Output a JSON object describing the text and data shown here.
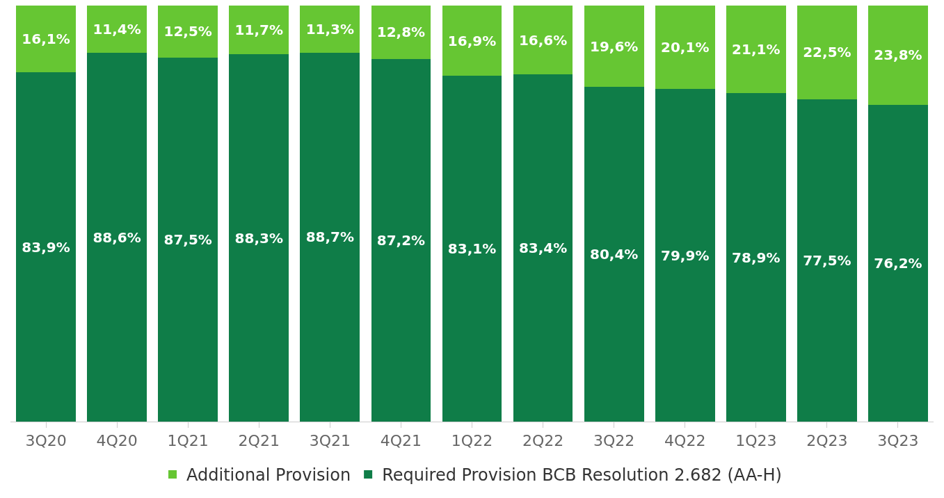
{
  "chart_data": {
    "type": "bar",
    "stacked": true,
    "categories": [
      "3Q20",
      "4Q20",
      "1Q21",
      "2Q21",
      "3Q21",
      "4Q21",
      "1Q22",
      "2Q22",
      "3Q22",
      "4Q22",
      "1Q23",
      "2Q23",
      "3Q23"
    ],
    "series": [
      {
        "name": "Required Provision BCB Resolution 2.682 (AA-H)",
        "color": "#0f7d48",
        "values": [
          83.9,
          88.6,
          87.5,
          88.3,
          88.7,
          87.2,
          83.1,
          83.4,
          80.4,
          79.9,
          78.9,
          77.5,
          76.2
        ],
        "value_labels": [
          "83,9%",
          "88,6%",
          "87,5%",
          "88,3%",
          "88,7%",
          "87,2%",
          "83,1%",
          "83,4%",
          "80,4%",
          "79,9%",
          "78,9%",
          "77,5%",
          "76,2%"
        ]
      },
      {
        "name": "Additional Provision",
        "color": "#66c633",
        "values": [
          16.1,
          11.4,
          12.5,
          11.7,
          11.3,
          12.8,
          16.9,
          16.6,
          19.6,
          20.1,
          21.1,
          22.5,
          23.8
        ],
        "value_labels": [
          "16,1%",
          "11,4%",
          "12,5%",
          "11,7%",
          "11,3%",
          "12,8%",
          "16,9%",
          "16,6%",
          "19,6%",
          "20,1%",
          "21,1%",
          "22,5%",
          "23,8%"
        ]
      }
    ],
    "ylim": [
      0,
      100
    ],
    "tick_labels": "x",
    "legend": "bottom"
  }
}
